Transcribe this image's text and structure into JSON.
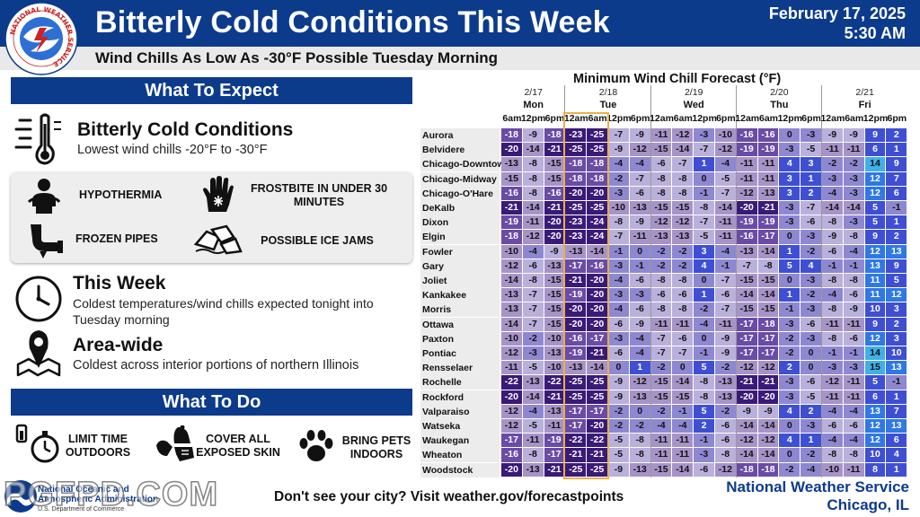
{
  "header": {
    "title": "Bitterly Cold Conditions This Week",
    "date_line1": "February 17, 2025",
    "date_line2": "5:30 AM",
    "subtitle": "Wind Chills As Low As -30°F Possible Tuesday Morning",
    "logo_text": "NATIONAL WEATHER SERVICE"
  },
  "expect": {
    "heading": "What To Expect",
    "main_title": "Bitterly Cold Conditions",
    "main_text": "Lowest wind chills -20°F to -30°F",
    "impacts": [
      "HYPOTHERMIA",
      "FROSTBITE IN UNDER 30 MINUTES",
      "FROZEN PIPES",
      "POSSIBLE ICE JAMS"
    ],
    "week_title": "This Week",
    "week_text": "Coldest temperatures/wind chills expected tonight into Tuesday morning",
    "area_title": "Area-wide",
    "area_text": "Coldest across interior portions of northern Illinois"
  },
  "todo": {
    "heading": "What To Do",
    "items": [
      "LIMIT TIME OUTDOORS",
      "COVER ALL EXPOSED SKIN",
      "BRING PETS INDOORS"
    ]
  },
  "icons": [
    "thermometer-cold-icon",
    "hypothermia-icon",
    "frostbite-hand-icon",
    "frozen-pipe-icon",
    "ice-jam-icon",
    "clock-icon",
    "map-pin-icon",
    "stopwatch-icon",
    "winter-clothing-icon",
    "paw-print-icon"
  ],
  "colors": {
    "brand_blue": "#0c3b8c",
    "highlight": "#e8b04a",
    "scale": [
      {
        "max": -20,
        "bg": "#3a1a78",
        "fg": "#ffffff"
      },
      {
        "max": -16,
        "bg": "#6a4ba6",
        "fg": "#ffffff"
      },
      {
        "max": -10,
        "bg": "#a693c8",
        "fg": "#111111"
      },
      {
        "max": -5,
        "bg": "#b9b0dc",
        "fg": "#111111"
      },
      {
        "max": 0,
        "bg": "#8e88d2",
        "fg": "#111111"
      },
      {
        "max": 10,
        "bg": "#3f4fd3",
        "fg": "#ffffff"
      },
      {
        "max": 13,
        "bg": "#2f78e6",
        "fg": "#ffffff"
      },
      {
        "max": 99,
        "bg": "#3fb0e8",
        "fg": "#111111"
      }
    ]
  },
  "chart_data": {
    "type": "table",
    "title": "Minimum Wind Chill Forecast (°F)",
    "days": [
      {
        "date": "2/17",
        "day": "Mon",
        "hours": [
          "6am",
          "12pm",
          "6pm"
        ]
      },
      {
        "date": "2/18",
        "day": "Tue",
        "hours": [
          "12am",
          "6am",
          "12pm",
          "6pm"
        ]
      },
      {
        "date": "2/19",
        "day": "Wed",
        "hours": [
          "12am",
          "6am",
          "12pm",
          "6pm"
        ]
      },
      {
        "date": "2/20",
        "day": "Thu",
        "hours": [
          "12am",
          "6am",
          "12pm",
          "6pm"
        ]
      },
      {
        "date": "2/21",
        "day": "Fri",
        "hours": [
          "12am",
          "6am",
          "12pm",
          "6pm"
        ]
      }
    ],
    "rows": [
      {
        "city": "Aurora",
        "values": [
          -18,
          -9,
          -18,
          -23,
          -25,
          -7,
          -9,
          -11,
          -12,
          -3,
          -10,
          -16,
          -16,
          0,
          -3,
          -9,
          -9,
          9,
          2
        ]
      },
      {
        "city": "Belvidere",
        "values": [
          -20,
          -14,
          -21,
          -25,
          -25,
          -9,
          -12,
          -15,
          -14,
          -7,
          -12,
          -19,
          -19,
          -3,
          -5,
          -11,
          -11,
          6,
          1
        ]
      },
      {
        "city": "Chicago-Downtown",
        "values": [
          -13,
          -8,
          -15,
          -18,
          -18,
          -4,
          -4,
          -6,
          -7,
          1,
          -4,
          -11,
          -11,
          4,
          3,
          -2,
          -2,
          14,
          9
        ]
      },
      {
        "city": "Chicago-Midway",
        "values": [
          -15,
          -8,
          -15,
          -18,
          -18,
          -2,
          -7,
          -8,
          -8,
          0,
          -5,
          -11,
          -11,
          3,
          1,
          -3,
          -3,
          12,
          7
        ]
      },
      {
        "city": "Chicago-O'Hare",
        "values": [
          -16,
          -8,
          -16,
          -20,
          -20,
          -3,
          -6,
          -8,
          -8,
          -1,
          -7,
          -12,
          -13,
          3,
          2,
          -4,
          -3,
          12,
          6
        ]
      },
      {
        "city": "DeKalb",
        "values": [
          -21,
          -14,
          -21,
          -25,
          -25,
          -10,
          -13,
          -15,
          -15,
          -8,
          -14,
          -20,
          -21,
          -3,
          -7,
          -14,
          -14,
          5,
          -1
        ]
      },
      {
        "city": "Dixon",
        "values": [
          -19,
          -11,
          -20,
          -23,
          -24,
          -8,
          -9,
          -12,
          -12,
          -7,
          -11,
          -19,
          -19,
          -3,
          -6,
          -8,
          -3,
          5,
          1
        ]
      },
      {
        "city": "Elgin",
        "values": [
          -18,
          -12,
          -20,
          -23,
          -24,
          -7,
          -11,
          -13,
          -13,
          -5,
          -11,
          -16,
          -17,
          0,
          -3,
          -9,
          -8,
          9,
          2
        ]
      },
      {
        "city": "Fowler",
        "values": [
          -10,
          -4,
          -9,
          -13,
          -14,
          -1,
          0,
          -2,
          -2,
          3,
          -4,
          -13,
          -14,
          1,
          -2,
          -6,
          -4,
          12,
          13
        ]
      },
      {
        "city": "Gary",
        "values": [
          -12,
          -6,
          -13,
          -17,
          -16,
          -3,
          -1,
          -2,
          -2,
          4,
          -1,
          -7,
          -8,
          5,
          4,
          -1,
          -1,
          13,
          9
        ]
      },
      {
        "city": "Joliet",
        "values": [
          -14,
          -8,
          -15,
          -21,
          -20,
          -4,
          -6,
          -8,
          -8,
          0,
          -7,
          -15,
          -15,
          0,
          -3,
          -8,
          -8,
          11,
          5
        ]
      },
      {
        "city": "Kankakee",
        "values": [
          -13,
          -7,
          -15,
          -19,
          -20,
          -3,
          -3,
          -6,
          -6,
          1,
          -6,
          -14,
          -14,
          1,
          -2,
          -4,
          -6,
          11,
          12
        ]
      },
      {
        "city": "Morris",
        "values": [
          -13,
          -7,
          -15,
          -20,
          -20,
          -4,
          -6,
          -8,
          -8,
          -2,
          -7,
          -15,
          -15,
          -1,
          -3,
          -8,
          -9,
          10,
          3
        ]
      },
      {
        "city": "Ottawa",
        "values": [
          -14,
          -7,
          -15,
          -20,
          -20,
          -6,
          -9,
          -11,
          -11,
          -4,
          -11,
          -17,
          -18,
          -3,
          -6,
          -11,
          -11,
          9,
          2
        ]
      },
      {
        "city": "Paxton",
        "values": [
          -10,
          -2,
          -10,
          -16,
          -17,
          -3,
          -4,
          -7,
          -6,
          0,
          -9,
          -17,
          -17,
          -2,
          -3,
          -8,
          -6,
          12,
          3
        ]
      },
      {
        "city": "Pontiac",
        "values": [
          -12,
          -3,
          -13,
          -19,
          -21,
          -6,
          -4,
          -7,
          -7,
          -1,
          -9,
          -17,
          -17,
          -2,
          0,
          -1,
          -1,
          14,
          10
        ]
      },
      {
        "city": "Rensselaer",
        "values": [
          -11,
          -5,
          -10,
          -13,
          -14,
          0,
          1,
          -2,
          0,
          5,
          -2,
          -12,
          -12,
          2,
          0,
          -3,
          -3,
          15,
          13
        ]
      },
      {
        "city": "Rochelle",
        "values": [
          -22,
          -13,
          -22,
          -25,
          -25,
          -9,
          -12,
          -15,
          -14,
          -8,
          -13,
          -21,
          -21,
          -3,
          -6,
          -12,
          -11,
          5,
          -1
        ]
      },
      {
        "city": "Rockford",
        "values": [
          -20,
          -14,
          -21,
          -25,
          -25,
          -9,
          -13,
          -15,
          -15,
          -8,
          -13,
          -20,
          -20,
          -3,
          -5,
          -11,
          -11,
          6,
          1
        ]
      },
      {
        "city": "Valparaiso",
        "values": [
          -12,
          -4,
          -13,
          -17,
          -17,
          -2,
          0,
          -2,
          -1,
          5,
          -2,
          -9,
          -9,
          4,
          2,
          -4,
          -4,
          13,
          7
        ]
      },
      {
        "city": "Watseka",
        "values": [
          -12,
          -5,
          -11,
          -17,
          -20,
          -2,
          -2,
          -4,
          -4,
          2,
          -6,
          -14,
          -14,
          0,
          -3,
          -6,
          -6,
          12,
          13
        ]
      },
      {
        "city": "Waukegan",
        "values": [
          -17,
          -11,
          -19,
          -22,
          -22,
          -5,
          -8,
          -11,
          -11,
          -1,
          -6,
          -12,
          -12,
          4,
          1,
          -4,
          -4,
          12,
          6
        ]
      },
      {
        "city": "Wheaton",
        "values": [
          -16,
          -8,
          -17,
          -21,
          -21,
          -5,
          -8,
          -11,
          -11,
          -3,
          -8,
          -14,
          -14,
          0,
          -2,
          -8,
          -8,
          10,
          4
        ]
      },
      {
        "city": "Woodstock",
        "values": [
          -20,
          -13,
          -21,
          -25,
          -25,
          -9,
          -13,
          -15,
          -14,
          -6,
          -12,
          -18,
          -18,
          -2,
          -4,
          -10,
          -11,
          8,
          1
        ]
      }
    ],
    "highlight_columns": [
      "2/18 12am",
      "2/18 6am"
    ]
  },
  "footer": {
    "visit_text": "Don't see your city? Visit weather.gov/forecastpoints",
    "nws_line1": "National Weather Service",
    "nws_line2": "Chicago, IL",
    "noaa_line1": "National Oceanic and",
    "noaa_line2": "Atmospheric Administration",
    "noaa_line3": "U.S. Department of Commerce",
    "watermark": "PGFPD.COM"
  }
}
